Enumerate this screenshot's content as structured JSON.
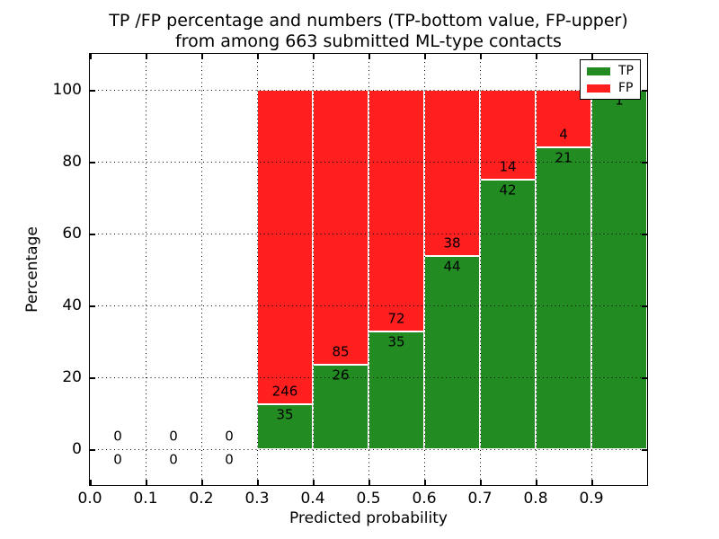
{
  "chart_data": {
    "type": "bar",
    "stacked": true,
    "orientation": "vertical",
    "title_line1": "TP /FP percentage and numbers (TP-bottom value, FP-upper)",
    "title_line2": "from among 663 submitted ML-type contacts",
    "xlabel": "Predicted probability",
    "ylabel": "Percentage",
    "total_contacts": 663,
    "xlim": [
      0.0,
      1.0
    ],
    "ylim": [
      -10,
      110
    ],
    "grid": true,
    "grid_style": "dotted",
    "background": "#ffffff",
    "xtick_labels": [
      "0.0",
      "0.1",
      "0.2",
      "0.3",
      "0.4",
      "0.5",
      "0.6",
      "0.7",
      "0.8",
      "0.9"
    ],
    "ytick_values": [
      0,
      20,
      40,
      60,
      80,
      100
    ],
    "bin_ranges": [
      "0.0-0.1",
      "0.1-0.2",
      "0.2-0.3",
      "0.3-0.4",
      "0.4-0.5",
      "0.5-0.6",
      "0.6-0.7",
      "0.7-0.8",
      "0.8-0.9",
      "0.9-1.0"
    ],
    "series": [
      {
        "name": "TP",
        "color": "#228b22",
        "counts": [
          0,
          0,
          0,
          35,
          26,
          35,
          44,
          42,
          21,
          1
        ]
      },
      {
        "name": "FP",
        "color": "#ff1f1f",
        "counts": [
          0,
          0,
          0,
          246,
          85,
          72,
          38,
          14,
          4,
          0
        ]
      }
    ],
    "tp_percent": [
      null,
      null,
      null,
      12.5,
      23.4,
      32.7,
      53.7,
      75.0,
      84.0,
      100.0
    ],
    "legend": {
      "position": "upper right",
      "entries": [
        {
          "label": "TP",
          "color": "#228b22"
        },
        {
          "label": "FP",
          "color": "#ff1f1f"
        }
      ]
    }
  }
}
